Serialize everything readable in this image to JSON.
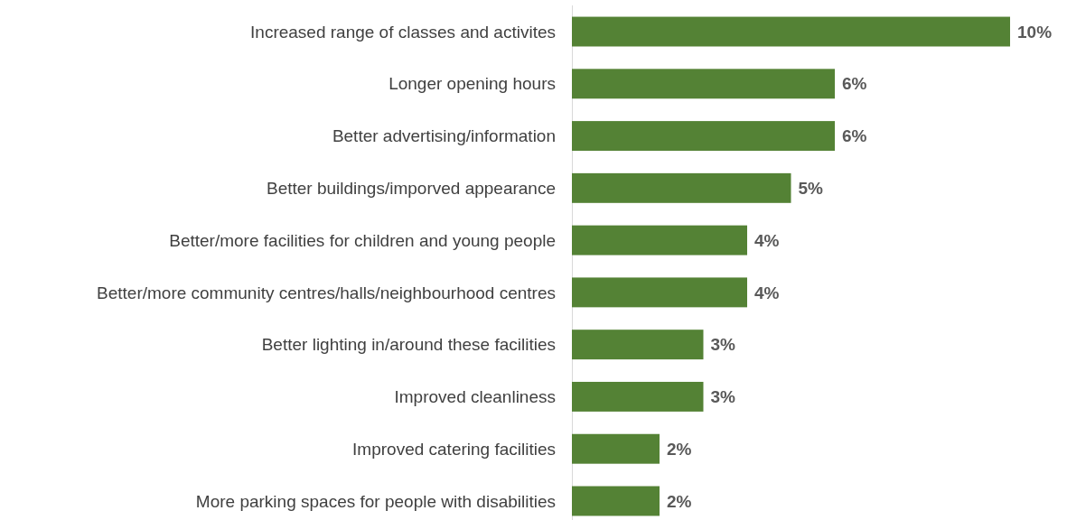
{
  "chart_data": {
    "type": "bar",
    "orientation": "horizontal",
    "categories": [
      "Increased range of classes and activites",
      "Longer opening hours",
      "Better advertising/information",
      "Better buildings/imporved appearance",
      "Better/more facilities for children and young people",
      "Better/more community centres/halls/neighbourhood centres",
      "Better lighting in/around these facilities",
      "Improved cleanliness",
      "Improved catering facilities",
      "More parking spaces for people with disabilities"
    ],
    "values": [
      10,
      6,
      6,
      5,
      4,
      4,
      3,
      3,
      2,
      2
    ],
    "value_labels": [
      "10%",
      "6%",
      "6%",
      "5%",
      "4%",
      "4%",
      "3%",
      "3%",
      "2%",
      "2%"
    ],
    "color": "#548235"
  }
}
